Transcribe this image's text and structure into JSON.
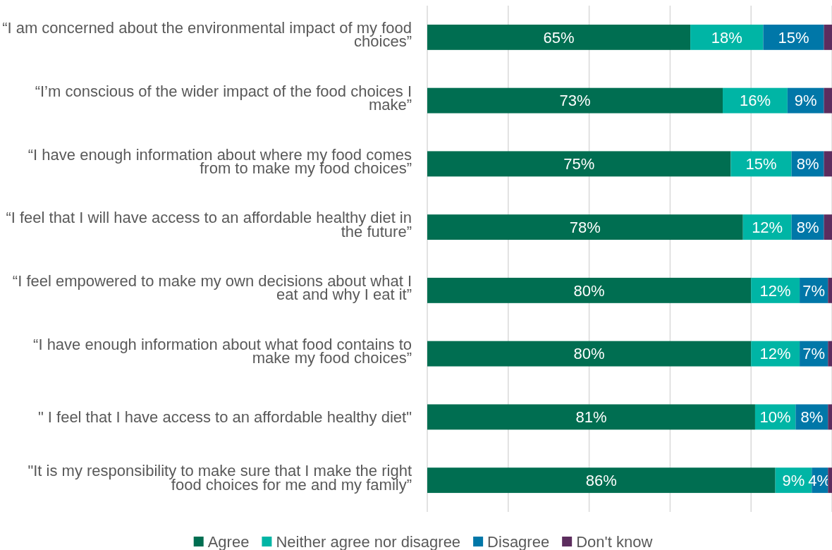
{
  "chart_data": {
    "type": "bar",
    "orientation": "horizontal",
    "stacked": true,
    "categories": [
      "“I am concerned about the environmental impact of my food choices”",
      "“I’m conscious of the wider impact of the food choices I make”",
      "“I have enough information about where my food comes from to make my food choices”",
      "“I feel that I will have access to an affordable healthy diet in the future”",
      "“I feel empowered to make my own decisions about what I eat and why I eat it”",
      "“I have enough information about what food contains to make my food choices”",
      "\" I feel that I have access to an affordable healthy diet\"",
      "\"It is my responsibility to make sure that I make the right food choices for me and my family”"
    ],
    "series": [
      {
        "name": "Agree",
        "color": "#006e51",
        "values": [
          65,
          73,
          75,
          78,
          80,
          80,
          81,
          86
        ],
        "value_labels": [
          "65%",
          "73%",
          "75%",
          "78%",
          "80%",
          "80%",
          "81%",
          "86%"
        ]
      },
      {
        "name": "Neither agree nor disagree",
        "color": "#00b5a5",
        "values": [
          18,
          16,
          15,
          12,
          12,
          12,
          10,
          9
        ],
        "value_labels": [
          "18%",
          "16%",
          "15%",
          "12%",
          "12%",
          "12%",
          "10%",
          "9%"
        ]
      },
      {
        "name": "Disagree",
        "color": "#0077a8",
        "values": [
          15,
          9,
          8,
          8,
          7,
          7,
          8,
          4
        ],
        "value_labels": [
          "15%",
          "9%",
          "8%",
          "8%",
          "7%",
          "7%",
          "8%",
          "4%"
        ]
      },
      {
        "name": "Don't know",
        "color": "#5c2d5e",
        "values": [
          2,
          2,
          2,
          2,
          1,
          1,
          1,
          1
        ]
      }
    ],
    "xlim": [
      0,
      100
    ],
    "xticks": [
      {
        "value": 0,
        "label": null
      },
      {
        "value": 20,
        "label": null
      },
      {
        "value": 40,
        "label": null
      },
      {
        "value": 60,
        "label": null
      },
      {
        "value": 80,
        "label": null
      },
      {
        "value": 100,
        "label": null
      }
    ],
    "tick_labels": "y",
    "grid": "x",
    "legend": "bottom"
  }
}
